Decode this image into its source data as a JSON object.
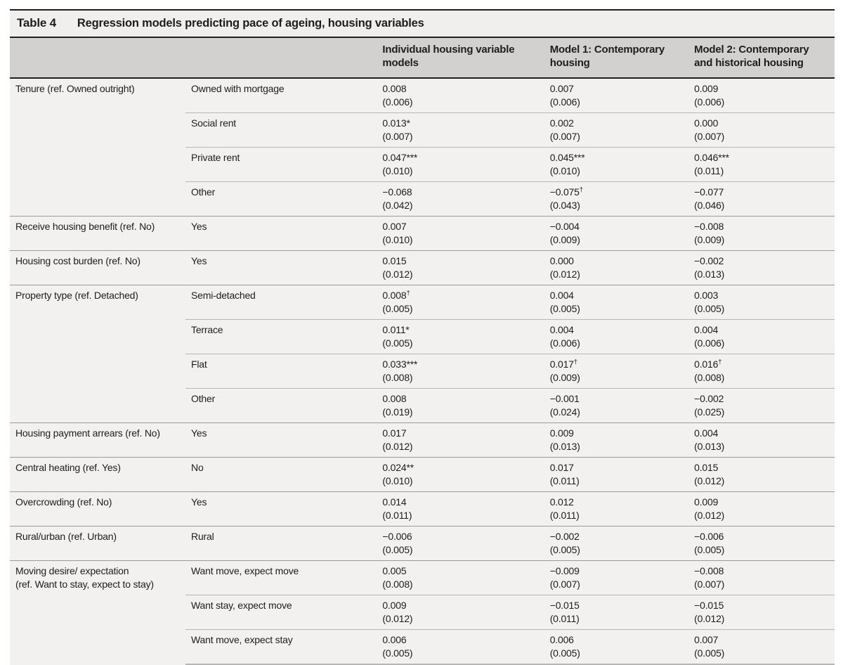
{
  "table": {
    "title_label": "Table 4",
    "title": "Regression models predicting pace of ageing, housing variables",
    "dagger_symbol": "†",
    "columns": [
      "",
      "",
      "Individual housing variable models",
      "Model 1: Contemporary housing",
      "Model 2: Contemporary and historical housing"
    ],
    "sections": [
      {
        "variable": "Tenure (ref. Owned outright)",
        "rows": [
          {
            "category": "Owned with mortgage",
            "values": [
              {
                "e": "0.008",
                "d": false,
                "se": "(0.006)"
              },
              {
                "e": "0.007",
                "d": false,
                "se": "(0.006)"
              },
              {
                "e": "0.009",
                "d": false,
                "se": "(0.006)"
              }
            ]
          },
          {
            "category": "Social rent",
            "values": [
              {
                "e": "0.013*",
                "d": false,
                "se": "(0.007)"
              },
              {
                "e": "0.002",
                "d": false,
                "se": "(0.007)"
              },
              {
                "e": "0.000",
                "d": false,
                "se": "(0.007)"
              }
            ]
          },
          {
            "category": "Private rent",
            "values": [
              {
                "e": "0.047***",
                "d": false,
                "se": "(0.010)"
              },
              {
                "e": "0.045***",
                "d": false,
                "se": "(0.010)"
              },
              {
                "e": "0.046***",
                "d": false,
                "se": "(0.011)"
              }
            ]
          },
          {
            "category": "Other",
            "values": [
              {
                "e": "−0.068",
                "d": false,
                "se": "(0.042)"
              },
              {
                "e": "−0.075",
                "d": true,
                "se": "(0.043)"
              },
              {
                "e": "−0.077",
                "d": false,
                "se": "(0.046)"
              }
            ]
          }
        ]
      },
      {
        "variable": "Receive housing benefit (ref. No)",
        "rows": [
          {
            "category": "Yes",
            "values": [
              {
                "e": "0.007",
                "d": false,
                "se": "(0.010)"
              },
              {
                "e": "−0.004",
                "d": false,
                "se": "(0.009)"
              },
              {
                "e": "−0.008",
                "d": false,
                "se": "(0.009)"
              }
            ]
          }
        ]
      },
      {
        "variable": "Housing cost burden (ref. No)",
        "rows": [
          {
            "category": "Yes",
            "values": [
              {
                "e": "0.015",
                "d": false,
                "se": "(0.012)"
              },
              {
                "e": "0.000",
                "d": false,
                "se": "(0.012)"
              },
              {
                "e": "−0.002",
                "d": false,
                "se": "(0.013)"
              }
            ]
          }
        ]
      },
      {
        "variable": "Property type (ref. Detached)",
        "rows": [
          {
            "category": "Semi-detached",
            "values": [
              {
                "e": "0.008",
                "d": true,
                "se": "(0.005)"
              },
              {
                "e": "0.004",
                "d": false,
                "se": "(0.005)"
              },
              {
                "e": "0.003",
                "d": false,
                "se": "(0.005)"
              }
            ]
          },
          {
            "category": "Terrace",
            "values": [
              {
                "e": "0.011*",
                "d": false,
                "se": "(0.005)"
              },
              {
                "e": "0.004",
                "d": false,
                "se": "(0.006)"
              },
              {
                "e": "0.004",
                "d": false,
                "se": "(0.006)"
              }
            ]
          },
          {
            "category": "Flat",
            "values": [
              {
                "e": "0.033***",
                "d": false,
                "se": "(0.008)"
              },
              {
                "e": "0.017",
                "d": true,
                "se": "(0.009)"
              },
              {
                "e": "0.016",
                "d": true,
                "se": "(0.008)"
              }
            ]
          },
          {
            "category": "Other",
            "values": [
              {
                "e": "0.008",
                "d": false,
                "se": "(0.019)"
              },
              {
                "e": "−0.001",
                "d": false,
                "se": "(0.024)"
              },
              {
                "e": "−0.002",
                "d": false,
                "se": "(0.025)"
              }
            ]
          }
        ]
      },
      {
        "variable": "Housing payment arrears (ref. No)",
        "rows": [
          {
            "category": "Yes",
            "values": [
              {
                "e": "0.017",
                "d": false,
                "se": "(0.012)"
              },
              {
                "e": "0.009",
                "d": false,
                "se": "(0.013)"
              },
              {
                "e": "0.004",
                "d": false,
                "se": "(0.013)"
              }
            ]
          }
        ]
      },
      {
        "variable": "Central heating (ref. Yes)",
        "rows": [
          {
            "category": "No",
            "values": [
              {
                "e": "0.024**",
                "d": false,
                "se": "(0.010)"
              },
              {
                "e": "0.017",
                "d": false,
                "se": "(0.011)"
              },
              {
                "e": "0.015",
                "d": false,
                "se": "(0.012)"
              }
            ]
          }
        ]
      },
      {
        "variable": "Overcrowding (ref. No)",
        "rows": [
          {
            "category": "Yes",
            "values": [
              {
                "e": "0.014",
                "d": false,
                "se": "(0.011)"
              },
              {
                "e": "0.012",
                "d": false,
                "se": "(0.011)"
              },
              {
                "e": "0.009",
                "d": false,
                "se": "(0.012)"
              }
            ]
          }
        ]
      },
      {
        "variable": "Rural/urban (ref. Urban)",
        "rows": [
          {
            "category": "Rural",
            "values": [
              {
                "e": "−0.006",
                "d": false,
                "se": "(0.005)"
              },
              {
                "e": "−0.002",
                "d": false,
                "se": "(0.005)"
              },
              {
                "e": "−0.006",
                "d": false,
                "se": "(0.005)"
              }
            ]
          }
        ]
      },
      {
        "variable": "Moving desire/ expectation\n(ref. Want to stay, expect to stay)",
        "rows": [
          {
            "category": "Want move, expect move",
            "values": [
              {
                "e": "0.005",
                "d": false,
                "se": "(0.008)"
              },
              {
                "e": "−0.009",
                "d": false,
                "se": "(0.007)"
              },
              {
                "e": "−0.008",
                "d": false,
                "se": "(0.007)"
              }
            ]
          },
          {
            "category": "Want stay, expect move",
            "values": [
              {
                "e": "0.009",
                "d": false,
                "se": "(0.012)"
              },
              {
                "e": "−0.015",
                "d": false,
                "se": "(0.011)"
              },
              {
                "e": "−0.015",
                "d": false,
                "se": "(0.012)"
              }
            ]
          },
          {
            "category": "Want move, expect stay",
            "values": [
              {
                "e": "0.006",
                "d": false,
                "se": "(0.005)"
              },
              {
                "e": "0.006",
                "d": false,
                "se": "(0.005)"
              },
              {
                "e": "0.007",
                "d": false,
                "se": "(0.005)"
              }
            ]
          }
        ]
      }
    ]
  }
}
